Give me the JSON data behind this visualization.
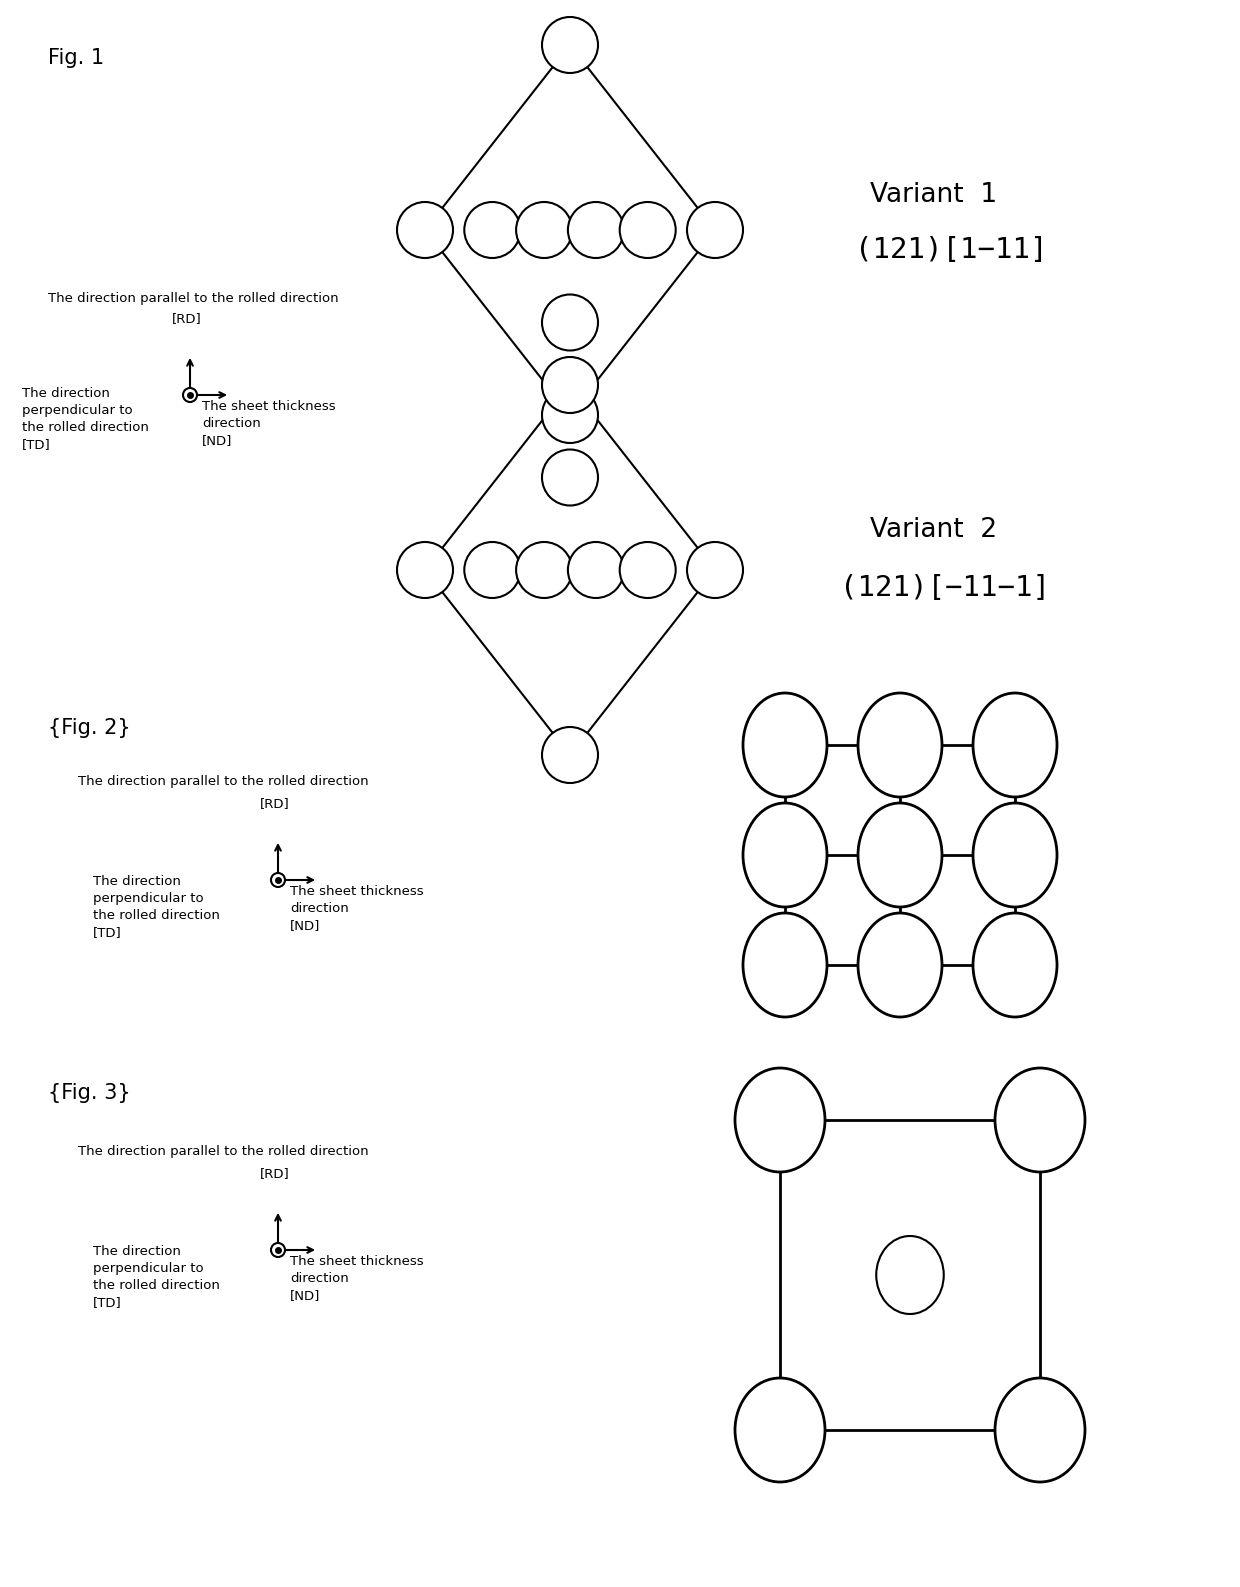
{
  "fig_label": "Fig. 1",
  "fig2_label": "{Fig. 2}",
  "fig3_label": "{Fig. 3}",
  "variant1_label": "Variant  1",
  "variant1_formula": "(121)[1−11]",
  "variant2_label": "Variant  2",
  "variant2_formula": "(121)[−11−1]",
  "axis_text1": "The direction parallel to the rolled direction",
  "axis_text2": "[RD]",
  "axis_text3_td": "The direction\nperpendicular to\nthe rolled direction\n[TD]",
  "axis_text4_nd": "The sheet thickness\ndirection\n[ND]",
  "bg_color": "#ffffff",
  "line_color": "#000000"
}
